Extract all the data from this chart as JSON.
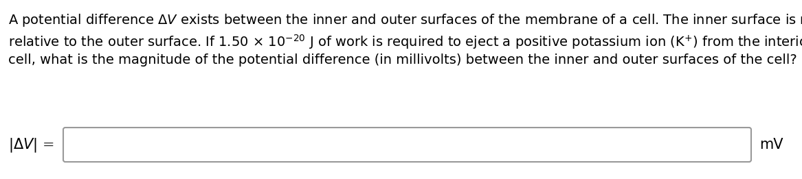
{
  "line1": "A potential difference $\\Delta V$ exists between the inner and outer surfaces of the membrane of a cell. The inner surface is negative",
  "line2": "relative to the outer surface. If 1.50 × 10$^{-20}$ J of work is required to eject a positive potassium ion (K$^{+}$) from the interior of the",
  "line3": "cell, what is the magnitude of the potential difference (in millivolts) between the inner and outer surfaces of the cell?",
  "label": "$|\\Delta V|$ =",
  "unit": "mV",
  "font_size": 14,
  "text_color": "#000000",
  "background_color": "#ffffff",
  "box_edge_color": "#999999",
  "box_face_color": "#ffffff"
}
